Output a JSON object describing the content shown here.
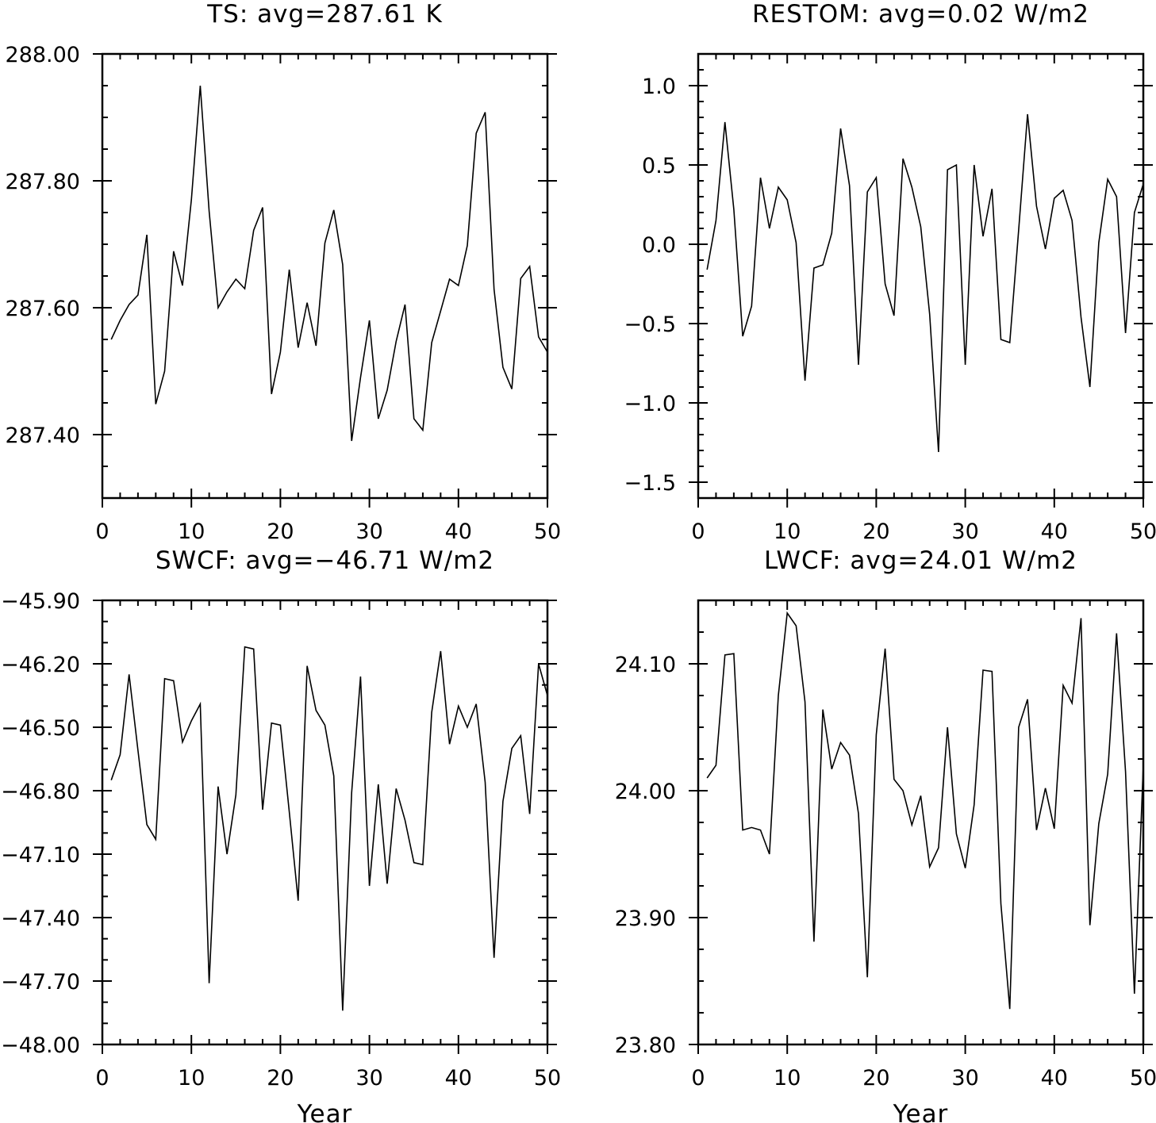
{
  "chart_data": [
    {
      "type": "line",
      "title": "TS: avg=287.61 K",
      "xlabel": "",
      "ylabel": "",
      "xlim": [
        0,
        50
      ],
      "ylim": [
        287.3,
        288.0
      ],
      "x_ticks": [
        0,
        10,
        20,
        30,
        40,
        50
      ],
      "x_tick_labels": [
        "0",
        "10",
        "20",
        "30",
        "40",
        "50"
      ],
      "y_ticks": [
        287.4,
        287.6,
        287.8,
        288.0
      ],
      "y_tick_labels": [
        "287.40",
        "287.60",
        "287.80",
        "288.00"
      ],
      "y_minor_step": 0.05,
      "grid": false,
      "x": [
        1,
        2,
        3,
        4,
        5,
        6,
        7,
        8,
        9,
        10,
        11,
        12,
        13,
        14,
        15,
        16,
        17,
        18,
        19,
        20,
        21,
        22,
        23,
        24,
        25,
        26,
        27,
        28,
        29,
        30,
        31,
        32,
        33,
        34,
        35,
        36,
        37,
        38,
        39,
        40,
        41,
        42,
        43,
        44,
        45,
        46,
        47,
        48,
        49,
        50
      ],
      "values": [
        287.55,
        287.58,
        287.605,
        287.62,
        287.715,
        287.448,
        287.5,
        287.689,
        287.635,
        287.77,
        287.95,
        287.752,
        287.6,
        287.625,
        287.645,
        287.63,
        287.722,
        287.758,
        287.464,
        287.53,
        287.66,
        287.537,
        287.608,
        287.54,
        287.702,
        287.754,
        287.668,
        287.39,
        287.49,
        287.58,
        287.425,
        287.47,
        287.547,
        287.605,
        287.425,
        287.407,
        287.545,
        287.595,
        287.645,
        287.635,
        287.698,
        287.875,
        287.908,
        287.629,
        287.506,
        287.472,
        287.646,
        287.665,
        287.554,
        287.53
      ]
    },
    {
      "type": "line",
      "title": "RESTOM: avg=0.02 W/m2",
      "xlabel": "",
      "ylabel": "",
      "xlim": [
        0,
        50
      ],
      "ylim": [
        -1.6,
        1.2
      ],
      "x_ticks": [
        0,
        10,
        20,
        30,
        40,
        50
      ],
      "x_tick_labels": [
        "0",
        "10",
        "20",
        "30",
        "40",
        "50"
      ],
      "y_ticks": [
        -1.5,
        -1.0,
        -0.5,
        0.0,
        0.5,
        1.0
      ],
      "y_tick_labels": [
        "−1.5",
        "−1.0",
        "−0.5",
        "0.0",
        "0.5",
        "1.0"
      ],
      "y_minor_step": 0.1,
      "grid": false,
      "x": [
        1,
        2,
        3,
        4,
        5,
        6,
        7,
        8,
        9,
        10,
        11,
        12,
        13,
        14,
        15,
        16,
        17,
        18,
        19,
        20,
        21,
        22,
        23,
        24,
        25,
        26,
        27,
        28,
        29,
        30,
        31,
        32,
        33,
        34,
        35,
        36,
        37,
        38,
        39,
        40,
        41,
        42,
        43,
        44,
        45,
        46,
        47,
        48,
        49,
        50
      ],
      "values": [
        -0.16,
        0.15,
        0.77,
        0.22,
        -0.58,
        -0.39,
        0.42,
        0.1,
        0.36,
        0.28,
        0.01,
        -0.86,
        -0.15,
        -0.13,
        0.07,
        0.73,
        0.37,
        -0.76,
        0.33,
        0.42,
        -0.25,
        -0.45,
        0.54,
        0.36,
        0.11,
        -0.44,
        -1.31,
        0.47,
        0.5,
        -0.76,
        0.5,
        0.05,
        0.35,
        -0.6,
        -0.62,
        0.09,
        0.82,
        0.24,
        -0.03,
        0.29,
        0.34,
        0.15,
        -0.46,
        -0.9,
        0.01,
        0.41,
        0.3,
        -0.56,
        0.2,
        0.38
      ]
    },
    {
      "type": "line",
      "title": "SWCF: avg=−46.71 W/m2",
      "xlabel": "Year",
      "ylabel": "",
      "xlim": [
        0,
        50
      ],
      "ylim": [
        -48.0,
        -45.9
      ],
      "x_ticks": [
        0,
        10,
        20,
        30,
        40,
        50
      ],
      "x_tick_labels": [
        "0",
        "10",
        "20",
        "30",
        "40",
        "50"
      ],
      "y_ticks": [
        -48.0,
        -47.7,
        -47.4,
        -47.1,
        -46.8,
        -46.5,
        -46.2,
        -45.9
      ],
      "y_tick_labels": [
        "−48.00",
        "−47.70",
        "−47.40",
        "−47.10",
        "−46.80",
        "−46.50",
        "−46.20",
        "−45.90"
      ],
      "y_minor_step": 0.1,
      "grid": false,
      "x": [
        1,
        2,
        3,
        4,
        5,
        6,
        7,
        8,
        9,
        10,
        11,
        12,
        13,
        14,
        15,
        16,
        17,
        18,
        19,
        20,
        21,
        22,
        23,
        24,
        25,
        26,
        27,
        28,
        29,
        30,
        31,
        32,
        33,
        34,
        35,
        36,
        37,
        38,
        39,
        40,
        41,
        42,
        43,
        44,
        45,
        46,
        47,
        48,
        49,
        50
      ],
      "values": [
        -46.75,
        -46.63,
        -46.25,
        -46.61,
        -46.96,
        -47.03,
        -46.27,
        -46.28,
        -46.57,
        -46.47,
        -46.39,
        -47.71,
        -46.78,
        -47.1,
        -46.82,
        -46.12,
        -46.13,
        -46.89,
        -46.48,
        -46.49,
        -46.9,
        -47.32,
        -46.21,
        -46.42,
        -46.49,
        -46.73,
        -47.84,
        -46.81,
        -46.26,
        -47.25,
        -46.77,
        -47.24,
        -46.79,
        -46.94,
        -47.14,
        -47.15,
        -46.43,
        -46.14,
        -46.58,
        -46.4,
        -46.5,
        -46.39,
        -46.76,
        -47.59,
        -46.85,
        -46.6,
        -46.54,
        -46.91,
        -46.2,
        -46.35
      ]
    },
    {
      "type": "line",
      "title": "LWCF: avg=24.01 W/m2",
      "xlabel": "Year",
      "ylabel": "",
      "xlim": [
        0,
        50
      ],
      "ylim": [
        23.8,
        24.15
      ],
      "x_ticks": [
        0,
        10,
        20,
        30,
        40,
        50
      ],
      "x_tick_labels": [
        "0",
        "10",
        "20",
        "30",
        "40",
        "50"
      ],
      "y_ticks": [
        23.8,
        23.9,
        24.0,
        24.1
      ],
      "y_tick_labels": [
        "23.80",
        "23.90",
        "24.00",
        "24.10"
      ],
      "y_minor_step": 0.025,
      "grid": false,
      "x": [
        1,
        2,
        3,
        4,
        5,
        6,
        7,
        8,
        9,
        10,
        11,
        12,
        13,
        14,
        15,
        16,
        17,
        18,
        19,
        20,
        21,
        22,
        23,
        24,
        25,
        26,
        27,
        28,
        29,
        30,
        31,
        32,
        33,
        34,
        35,
        36,
        37,
        38,
        39,
        40,
        41,
        42,
        43,
        44,
        45,
        46,
        47,
        48,
        49,
        50
      ],
      "values": [
        24.01,
        24.02,
        24.107,
        24.108,
        23.969,
        23.971,
        23.969,
        23.95,
        24.075,
        24.14,
        24.13,
        24.07,
        23.881,
        24.064,
        24.017,
        24.038,
        24.028,
        23.982,
        23.853,
        24.044,
        24.112,
        24.009,
        24.0,
        23.973,
        23.996,
        23.94,
        23.955,
        24.05,
        23.966,
        23.939,
        23.989,
        24.095,
        24.094,
        23.911,
        23.828,
        24.05,
        24.072,
        23.969,
        24.002,
        23.97,
        24.083,
        24.069,
        24.136,
        23.894,
        23.974,
        24.013,
        24.124,
        24.015,
        23.84,
        24.02
      ]
    }
  ]
}
